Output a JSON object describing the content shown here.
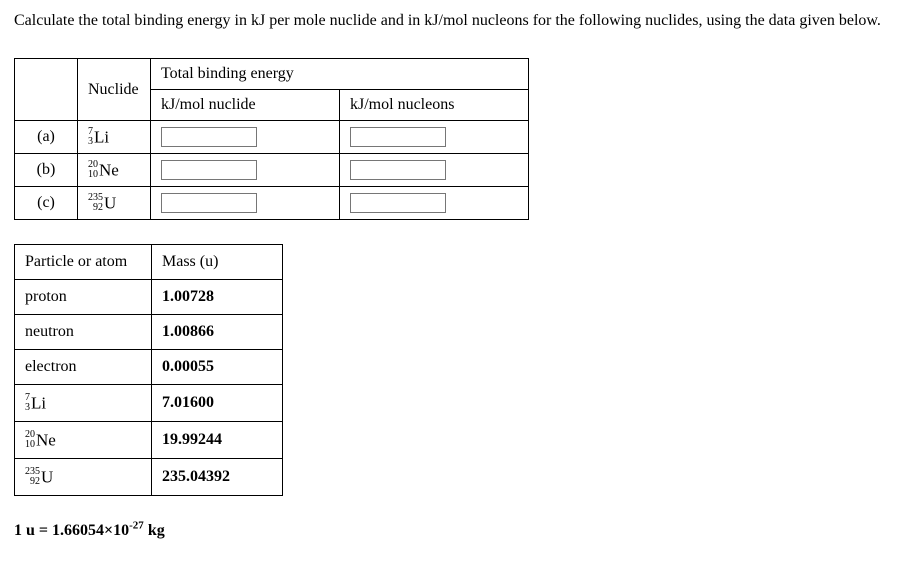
{
  "instruction": "Calculate the total binding energy in kJ per mole nuclide and in kJ/mol nucleons for the following nuclides, using the data given below.",
  "answer_table": {
    "header_nuclide": "Nuclide",
    "header_total": "Total binding energy",
    "header_per_nuclide": "kJ/mol nuclide",
    "header_per_nucleon": "kJ/mol nucleons",
    "rows": [
      {
        "label": "(a)",
        "A": "7",
        "Z": "3",
        "sym": "Li"
      },
      {
        "label": "(b)",
        "A": "20",
        "Z": "10",
        "sym": "Ne"
      },
      {
        "label": "(c)",
        "A": "235",
        "Z": "92",
        "sym": "U"
      }
    ]
  },
  "mass_table": {
    "header_particle": "Particle or atom",
    "header_mass": "Mass (u)",
    "rows": [
      {
        "kind": "text",
        "name": "proton",
        "mass": "1.00728"
      },
      {
        "kind": "text",
        "name": "neutron",
        "mass": "1.00866"
      },
      {
        "kind": "text",
        "name": "electron",
        "mass": "0.00055"
      },
      {
        "kind": "nuclide",
        "A": "7",
        "Z": "3",
        "sym": "Li",
        "mass": "7.01600"
      },
      {
        "kind": "nuclide",
        "A": "20",
        "Z": "10",
        "sym": "Ne",
        "mass": "19.99244"
      },
      {
        "kind": "nuclide",
        "A": "235",
        "Z": "92",
        "sym": "U",
        "mass": "235.04392"
      }
    ]
  },
  "footnote": {
    "prefix": "1 u = 1.66054×10",
    "exp": "-27",
    "suffix": " kg"
  }
}
